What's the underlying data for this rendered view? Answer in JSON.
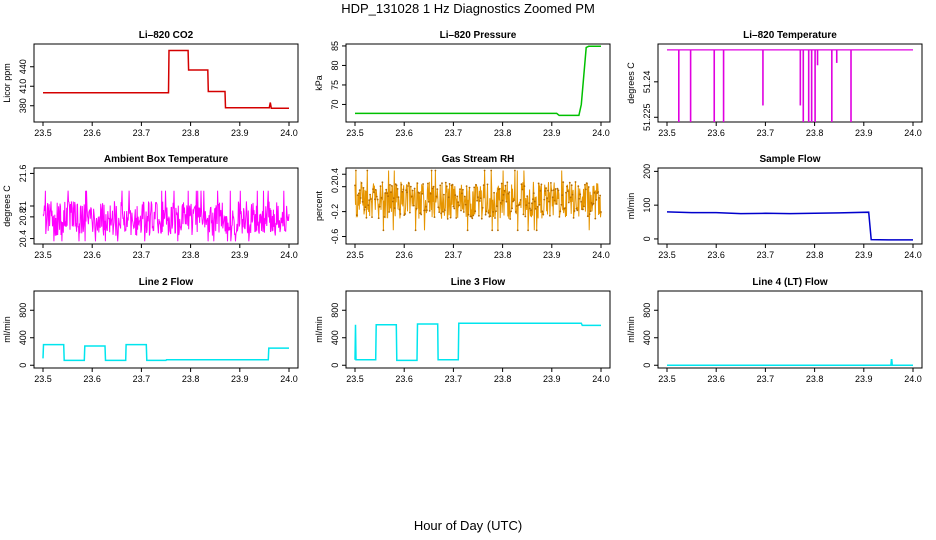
{
  "page": {
    "title": "HDP_131028  1 Hz Diagnostics Zoomed PM",
    "xlabel": "Hour of Day (UTC)"
  },
  "chart_data": [
    {
      "type": "line",
      "title": "Li–820 CO2",
      "ylabel": "Licor ppm",
      "color": "#d40000",
      "xlim": [
        23.5,
        24.0
      ],
      "xticks": [
        "23.5",
        "23.6",
        "23.7",
        "23.8",
        "23.9",
        "24.0"
      ],
      "ylim": [
        355,
        475
      ],
      "yticks": [
        380,
        410,
        440
      ],
      "series": [
        {
          "x": [
            23.5,
            23.755,
            23.756,
            23.795,
            23.796,
            23.835,
            23.836,
            23.87,
            23.871,
            23.96,
            23.962,
            23.964,
            24.0
          ],
          "y": [
            400,
            400,
            465,
            465,
            435,
            435,
            402,
            402,
            377,
            377,
            385,
            376,
            376
          ]
        }
      ]
    },
    {
      "type": "line",
      "title": "Li–820 Pressure",
      "ylabel": "kPa",
      "color": "#00c000",
      "xlim": [
        23.5,
        24.0
      ],
      "xticks": [
        "23.5",
        "23.6",
        "23.7",
        "23.8",
        "23.9",
        "24.0"
      ],
      "ylim": [
        65.5,
        85.5
      ],
      "yticks": [
        70,
        75,
        80,
        85
      ],
      "series": [
        {
          "x": [
            23.5,
            23.91,
            23.915,
            23.955,
            23.96,
            23.97,
            23.975,
            24.0
          ],
          "y": [
            67.7,
            67.7,
            67.2,
            67.2,
            70,
            84.6,
            84.9,
            84.9
          ]
        }
      ]
    },
    {
      "type": "line",
      "title": "Li–820 Temperature",
      "ylabel": "degrees C",
      "color": "#e000e0",
      "xlim": [
        23.5,
        24.0
      ],
      "xticks": [
        "23.5",
        "23.6",
        "23.7",
        "23.8",
        "23.9",
        "24.0"
      ],
      "ylim": [
        51.223,
        51.256
      ],
      "yticks": [
        51.225,
        51.24
      ],
      "base": 51.2535,
      "spikes": [
        {
          "x": 23.524,
          "y": 51.223
        },
        {
          "x": 23.548,
          "y": 51.223
        },
        {
          "x": 23.596,
          "y": 51.223
        },
        {
          "x": 23.615,
          "y": 51.223
        },
        {
          "x": 23.695,
          "y": 51.23
        },
        {
          "x": 23.771,
          "y": 51.23
        },
        {
          "x": 23.777,
          "y": 51.223
        },
        {
          "x": 23.788,
          "y": 51.223
        },
        {
          "x": 23.794,
          "y": 51.223
        },
        {
          "x": 23.801,
          "y": 51.223
        },
        {
          "x": 23.806,
          "y": 51.247
        },
        {
          "x": 23.835,
          "y": 51.223
        },
        {
          "x": 23.845,
          "y": 51.248
        },
        {
          "x": 23.874,
          "y": 51.223
        }
      ]
    },
    {
      "type": "line",
      "title": "Ambient Box Temperature",
      "ylabel": "degrees C",
      "color": "#ff00ff",
      "xlim": [
        23.5,
        24.0
      ],
      "xticks": [
        "23.5",
        "23.6",
        "23.7",
        "23.8",
        "23.9",
        "24.0"
      ],
      "ylim": [
        20.3,
        21.7
      ],
      "yticks": [
        20.4,
        20.8,
        21.0,
        21.6
      ],
      "noise": {
        "mean": 20.77,
        "amp": 0.32,
        "lo": 20.35,
        "hi": 21.68
      }
    },
    {
      "type": "line",
      "title": "Gas Stream RH",
      "ylabel": "percent",
      "color": "#e69500",
      "xlim": [
        23.5,
        24.0
      ],
      "xticks": [
        "23.5",
        "23.6",
        "23.7",
        "23.8",
        "23.9",
        "24.0"
      ],
      "ylim": [
        -0.72,
        0.5
      ],
      "yticks": [
        -0.6,
        -0.2,
        0.2,
        0.4
      ],
      "noise": {
        "mean": -0.02,
        "amp": 0.3,
        "lo": -0.68,
        "hi": 0.48
      }
    },
    {
      "type": "line",
      "title": "Sample Flow",
      "ylabel": "ml/min",
      "color": "#0000cc",
      "xlim": [
        23.5,
        24.0
      ],
      "xticks": [
        "23.5",
        "23.6",
        "23.7",
        "23.8",
        "23.9",
        "24.0"
      ],
      "ylim": [
        -15,
        210
      ],
      "yticks": [
        0,
        100,
        200
      ],
      "series": [
        {
          "x": [
            23.5,
            23.55,
            23.6,
            23.65,
            23.7,
            23.75,
            23.8,
            23.85,
            23.91,
            23.915,
            23.95,
            24.0
          ],
          "y": [
            80,
            78,
            78,
            75,
            76,
            75,
            76,
            77,
            79,
            -2,
            -3,
            -3
          ]
        }
      ]
    },
    {
      "type": "line",
      "title": "Line 2 Flow",
      "ylabel": "ml/min",
      "color": "#00e5ee",
      "xlim": [
        23.5,
        24.0
      ],
      "xticks": [
        "23.5",
        "23.6",
        "23.7",
        "23.8",
        "23.9",
        "24.0"
      ],
      "ylim": [
        -40,
        1080
      ],
      "yticks": [
        0,
        400,
        800
      ],
      "series": [
        {
          "x": [
            23.5,
            23.501,
            23.542,
            23.543,
            23.584,
            23.585,
            23.626,
            23.627,
            23.668,
            23.669,
            23.71,
            23.711,
            23.75,
            23.751,
            23.958,
            23.959,
            24.0
          ],
          "y": [
            100,
            300,
            300,
            70,
            70,
            280,
            280,
            70,
            70,
            300,
            300,
            70,
            70,
            80,
            80,
            250,
            250
          ]
        }
      ]
    },
    {
      "type": "line",
      "title": "Line 3 Flow",
      "ylabel": "ml/min",
      "color": "#00e5ee",
      "xlim": [
        23.5,
        24.0
      ],
      "xticks": [
        "23.5",
        "23.6",
        "23.7",
        "23.8",
        "23.9",
        "24.0"
      ],
      "ylim": [
        -40,
        1080
      ],
      "yticks": [
        0,
        400,
        800
      ],
      "series": [
        {
          "x": [
            23.5,
            23.501,
            23.502,
            23.542,
            23.543,
            23.584,
            23.585,
            23.626,
            23.627,
            23.668,
            23.669,
            23.71,
            23.711,
            23.96,
            23.962,
            24.0
          ],
          "y": [
            80,
            590,
            80,
            80,
            590,
            590,
            70,
            70,
            600,
            600,
            80,
            80,
            610,
            610,
            580,
            580
          ]
        }
      ]
    },
    {
      "type": "line",
      "title": "Line 4 (LT) Flow",
      "ylabel": "ml/min",
      "color": "#00e5ee",
      "xlim": [
        23.5,
        24.0
      ],
      "xticks": [
        "23.5",
        "23.6",
        "23.7",
        "23.8",
        "23.9",
        "24.0"
      ],
      "ylim": [
        -40,
        1080
      ],
      "yticks": [
        0,
        400,
        800
      ],
      "series": [
        {
          "x": [
            23.5,
            23.955,
            23.956,
            23.957,
            23.958,
            24.0
          ],
          "y": [
            0,
            0,
            80,
            80,
            0,
            0
          ]
        }
      ]
    }
  ]
}
